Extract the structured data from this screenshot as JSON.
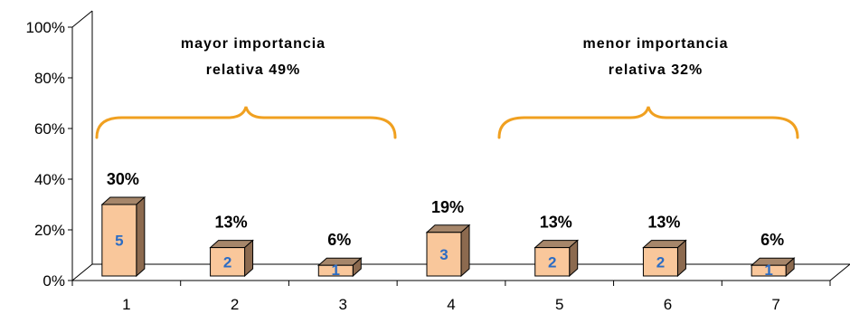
{
  "chart_data": {
    "type": "bar",
    "categories": [
      "1",
      "2",
      "3",
      "4",
      "5",
      "6",
      "7"
    ],
    "values": [
      30,
      13,
      6,
      19,
      13,
      13,
      6
    ],
    "value_labels": [
      "30%",
      "13%",
      "6%",
      "19%",
      "13%",
      "13%",
      "6%"
    ],
    "counts": [
      "5",
      "2",
      "1",
      "3",
      "2",
      "2",
      "1"
    ],
    "ylim": [
      0,
      100
    ],
    "y_ticks": [
      "0%",
      "20%",
      "40%",
      "60%",
      "80%",
      "100%"
    ],
    "grid": false,
    "legend": "none",
    "annotations": [
      {
        "text_line1": "mayor importancia",
        "text_line2": "relativa 49%",
        "spans_categories": [
          "1",
          "2",
          "3"
        ]
      },
      {
        "text_line1": "menor importancia",
        "text_line2": "relativa 32%",
        "spans_categories": [
          "5",
          "6",
          "7"
        ]
      }
    ],
    "colors": {
      "bar_front": "#f9c79b",
      "bar_side": "#8c6a4f",
      "bar_top": "#a6866a",
      "count_text": "#2b6cc4",
      "bracket": "#f0a020"
    }
  }
}
